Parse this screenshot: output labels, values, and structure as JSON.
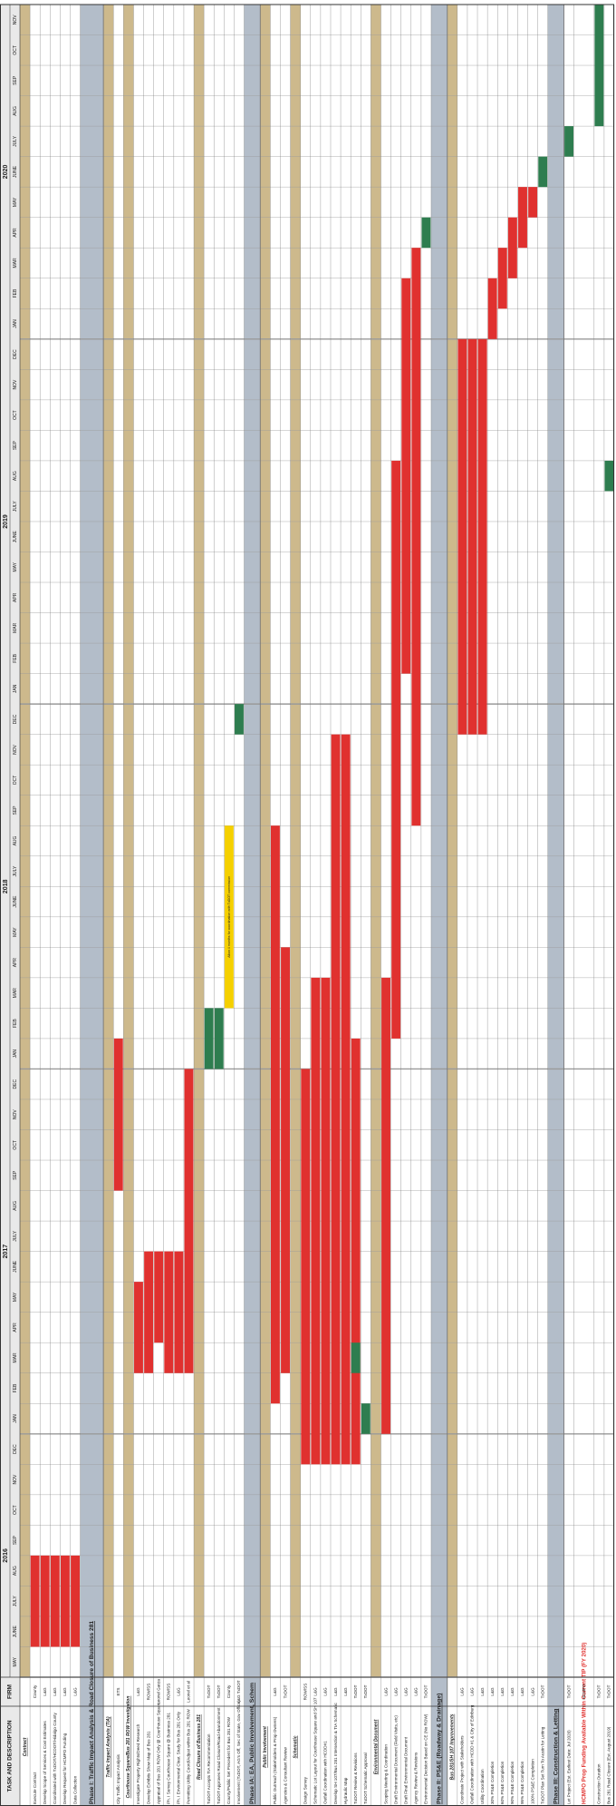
{
  "chart_data": {
    "type": "gantt",
    "headers": {
      "task": "TASK AND DESCRIPTION",
      "firm": "FIRM"
    },
    "years": [
      {
        "label": "2016",
        "months": [
          "MAY",
          "JUNE",
          "JULY",
          "AUG",
          "SEP",
          "OCT",
          "NOV",
          "DEC"
        ]
      },
      {
        "label": "2017",
        "months": [
          "JAN",
          "FEB",
          "MAR",
          "APR",
          "MAY",
          "JUNE",
          "JULY",
          "AUG",
          "SEP",
          "OCT",
          "NOV",
          "DEC"
        ]
      },
      {
        "label": "2018",
        "months": [
          "JAN",
          "FEB",
          "MAR",
          "APR",
          "MAY",
          "JUNE",
          "JULY",
          "AUG",
          "SEP",
          "OCT",
          "NOV",
          "DEC"
        ]
      },
      {
        "label": "2019",
        "months": [
          "JAN",
          "FEB",
          "MAR",
          "APR",
          "MAY",
          "JUNE",
          "JULY",
          "AUG",
          "SEP",
          "OCT",
          "NOV",
          "DEC"
        ]
      },
      {
        "label": "2020",
        "months": [
          "JAN",
          "FEB",
          "MAR",
          "APR",
          "MAY",
          "JUNE",
          "JULY",
          "AUG",
          "SEP",
          "OCT",
          "NOV"
        ]
      }
    ],
    "colors": {
      "section": "#b3bdc9",
      "subsection": "#cdb98c",
      "grid": "#9a9a9a"
    },
    "rows": [
      {
        "kind": "sub",
        "task": "Contract"
      },
      {
        "kind": "task",
        "task": "Execute Contract",
        "firm": "County",
        "bars": [
          {
            "start": "JUNE 2016",
            "end": "AUG 2016",
            "color": "#e0312f"
          }
        ]
      },
      {
        "kind": "task",
        "task": "Develop Scope of Services & Cost Estimates",
        "firm": "L&G",
        "bars": [
          {
            "start": "JUNE 2016",
            "end": "AUG 2016",
            "color": "#e0312f"
          }
        ]
      },
      {
        "kind": "task",
        "task": "Coordinated with TxDOT/HCDOT/Hidalgo County",
        "firm": "L&G",
        "bars": [
          {
            "start": "JUNE 2016",
            "end": "AUG 2016",
            "color": "#e0312f"
          }
        ]
      },
      {
        "kind": "task",
        "task": "Develop Request for HCMPO Funding",
        "firm": "L&G",
        "bars": [
          {
            "start": "JUNE 2016",
            "end": "AUG 2016",
            "color": "#e0312f"
          }
        ]
      },
      {
        "kind": "task",
        "task": "Data Collection",
        "firm": "L&G",
        "bars": [
          {
            "start": "JUNE 2016",
            "end": "AUG 2016",
            "color": "#e0312f"
          }
        ]
      },
      {
        "kind": "section",
        "task": "Phase I: Traffic Impact Analysis & Road Closure of Business 281",
        "tall": true
      },
      {
        "kind": "sub",
        "task": "Traffic Impact Analysis (TIA)"
      },
      {
        "kind": "task",
        "task": "City Traffic Impact Analysis",
        "firm": "ETS",
        "bars": [
          {
            "start": "SEP 2017",
            "end": "JAN 2018",
            "color": "#e0312f"
          }
        ]
      },
      {
        "kind": "sub",
        "task": "Courthouse Square/Bus 281 ROW Investigation"
      },
      {
        "kind": "task",
        "task": "Investigate Property Rights/Deed Research",
        "firm": "L&G",
        "bars": [
          {
            "start": "MAR 2017",
            "end": "MAY 2017",
            "color": "#e0312f"
          }
        ]
      },
      {
        "kind": "task",
        "task": "Develop Exhibits Show Map of Bus 281",
        "firm": "ROW/SS",
        "bars": [
          {
            "start": "MAR 2017",
            "end": "JUNE 2017",
            "color": "#e0312f"
          }
        ]
      },
      {
        "kind": "task",
        "task": "Appraisal of Bus 281 ROW Only @ Courthouse Square",
        "firm": "Leonel Garza",
        "bars": [
          {
            "start": "APR 2017",
            "end": "JUNE 2017",
            "color": "#e0312f"
          }
        ]
      },
      {
        "kind": "task",
        "task": "Ph. I Survey Courthouse Square @ Business 281",
        "firm": "ROW/SS",
        "bars": [
          {
            "start": "MAR 2017",
            "end": "JUNE 2017",
            "color": "#e0312f"
          }
        ]
      },
      {
        "kind": "task",
        "task": "Ph. I Environmental Clear. Study for Bus 281 Only",
        "firm": "L&G",
        "bars": [
          {
            "start": "MAR 2017",
            "end": "JUNE 2017",
            "color": "#e0312f"
          }
        ]
      },
      {
        "kind": "task",
        "task": "Permitting Utility Coord/Adjust within Bus 281 ROW",
        "firm": "Leonel et al",
        "bars": [
          {
            "start": "MAR 2017",
            "end": "DEC 2017",
            "color": "#e0312f"
          }
        ]
      },
      {
        "kind": "sub",
        "task": "Road Closure of Business 281"
      },
      {
        "kind": "task",
        "task": "TxDOT Accepts TIA Recommendation",
        "firm": "TxDOT",
        "bars": [
          {
            "start": "JAN 2018",
            "end": "FEB 2018",
            "color": "#2e7d4f"
          }
        ]
      },
      {
        "kind": "task",
        "task": "TxDOT Approves Road Closure/Road Abandonment",
        "firm": "TxDOT",
        "bars": [
          {
            "start": "JAN 2018",
            "end": "FEB 2018",
            "color": "#2e7d4f"
          }
        ]
      },
      {
        "kind": "task",
        "task": "County/Public Set Precedent for Bus 281 ROW",
        "firm": "County",
        "bars": [
          {
            "start": "MAR 2018",
            "end": "AUG 2018",
            "color": "#f5d000",
            "label": "Allow 4 months for coordination with TxDOT commission"
          }
        ]
      },
      {
        "kind": "task",
        "task": "Involvement (TxDOT, AG's Off, Sec of State, Gov Office)",
        "firm": "L&G TxDOT",
        "bars": [
          {
            "start": "DEC 2018",
            "end": "DEC 2018",
            "color": "#2e7d4f"
          }
        ]
      },
      {
        "kind": "section",
        "task": "Phase IA: EA, Public Involvement, Schem"
      },
      {
        "kind": "sub",
        "task": "Public Involvement"
      },
      {
        "kind": "task",
        "task": "Public Outreach (Stakeholders & Prop Owners)",
        "firm": "L&G",
        "bars": [
          {
            "start": "FEB 2017",
            "end": "AUG 2018",
            "color": "#e0312f"
          }
        ]
      },
      {
        "kind": "task",
        "task": "Agencies & Consultant Review",
        "firm": "TxDOT",
        "bars": [
          {
            "start": "MAR 2017",
            "end": "APR 2018",
            "color": "#e0312f"
          }
        ]
      },
      {
        "kind": "sub",
        "task": "Schematic"
      },
      {
        "kind": "task",
        "task": "Design Survey",
        "firm": "ROW/SS",
        "bars": [
          {
            "start": "DEC 2016",
            "end": "DEC 2017",
            "color": "#e0312f"
          }
        ]
      },
      {
        "kind": "task",
        "task": "Schematic Lot Layout for Courthouse Square and SH 107",
        "firm": "L&G",
        "bars": [
          {
            "start": "DEC 2016",
            "end": "MAR 2018",
            "color": "#e0312f"
          }
        ]
      },
      {
        "kind": "task",
        "task": "Outfall Coordination with HCDD#1",
        "firm": "L&G",
        "bars": [
          {
            "start": "DEC 2016",
            "end": "MAR 2018",
            "color": "#e0312f"
          }
        ]
      },
      {
        "kind": "task",
        "task": "Develop SH 107/Bus 281 Intersection & TIA Schematic",
        "firm": "L&G",
        "bars": [
          {
            "start": "DEC 2016",
            "end": "NOV 2018",
            "color": "#e0312f"
          }
        ]
      },
      {
        "kind": "task",
        "task": "Hydraulic Map",
        "firm": "L&G",
        "bars": [
          {
            "start": "DEC 2016",
            "end": "NOV 2018",
            "color": "#e0312f"
          }
        ]
      },
      {
        "kind": "task",
        "task": "TxDOT Review & Revisions",
        "firm": "TxDOT",
        "bars": [
          {
            "start": "DEC 2016",
            "end": "JAN 2018",
            "color": "#e0312f"
          },
          {
            "start": "MAR 2017",
            "end": "MAR 2017",
            "color": "#2e7d4f"
          }
        ]
      },
      {
        "kind": "task",
        "task": "TxDOT Schematic Approval",
        "firm": "TxDOT",
        "bars": [
          {
            "start": "JAN 2017",
            "end": "JAN 2017",
            "color": "#2e7d4f"
          }
        ]
      },
      {
        "kind": "sub",
        "task": "Environmental Document"
      },
      {
        "kind": "task",
        "task": "Scoping Meeting & Coordination",
        "firm": "L&G",
        "bars": [
          {
            "start": "JAN 2017",
            "end": "MAR 2018",
            "color": "#e0312f"
          }
        ]
      },
      {
        "kind": "task",
        "task": "Draft Environmental Document (Field Visits, etc)",
        "firm": "L&G",
        "bars": [
          {
            "start": "FEB 2018",
            "end": "AUG 2019",
            "color": "#e0312f"
          }
        ]
      },
      {
        "kind": "task",
        "task": "Draft Final Environmental Document",
        "firm": "L&G",
        "bars": [
          {
            "start": "FEB 2019",
            "end": "FEB 2020",
            "color": "#e0312f"
          }
        ]
      },
      {
        "kind": "task",
        "task": "Agency Review & Revisions",
        "firm": "L&G",
        "bars": [
          {
            "start": "SEP 2018",
            "end": "MAR 2020",
            "color": "#e0312f"
          }
        ]
      },
      {
        "kind": "task",
        "task": "Environmental Decision Based on CE (No ROW)",
        "firm": "TxDOT",
        "bars": [
          {
            "start": "APR 2020",
            "end": "APR 2020",
            "color": "#2e7d4f"
          }
        ]
      },
      {
        "kind": "section",
        "task": "Phase II: PS&E (Roadway & Drainage)"
      },
      {
        "kind": "sub",
        "task": "Bus 281/SH 107 Improvements"
      },
      {
        "kind": "task",
        "task": "Coordinate Project with Stakeholders",
        "firm": "L&G",
        "bars": [
          {
            "start": "DEC 2018",
            "end": "DEC 2019",
            "color": "#e0312f"
          }
        ]
      },
      {
        "kind": "task",
        "task": "Outfall Coordination with HCDD #1 & City of Edinburg",
        "firm": "L&G",
        "bars": [
          {
            "start": "DEC 2018",
            "end": "DEC 2019",
            "color": "#e0312f"
          }
        ]
      },
      {
        "kind": "task",
        "task": "Utility Coordination",
        "firm": "L&G",
        "bars": [
          {
            "start": "DEC 2018",
            "end": "DEC 2019",
            "color": "#e0312f"
          }
        ]
      },
      {
        "kind": "task",
        "task": "30% PS&E Completion",
        "firm": "L&G",
        "bars": [
          {
            "start": "JAN 2020",
            "end": "FEB 2020",
            "color": "#e0312f"
          }
        ]
      },
      {
        "kind": "task",
        "task": "60% PS&E Completion",
        "firm": "L&G",
        "bars": [
          {
            "start": "FEB 2020",
            "end": "MAR 2020",
            "color": "#e0312f"
          }
        ]
      },
      {
        "kind": "task",
        "task": "90% PS&E Completion",
        "firm": "L&G",
        "bars": [
          {
            "start": "MAR 2020",
            "end": "APR 2020",
            "color": "#e0312f"
          }
        ]
      },
      {
        "kind": "task",
        "task": "95% PS&E Completion",
        "firm": "L&G",
        "bars": [
          {
            "start": "APR 2020",
            "end": "MAY 2020",
            "color": "#e0312f"
          }
        ]
      },
      {
        "kind": "task",
        "task": "100% PS&E Completion",
        "firm": "L&G",
        "bars": [
          {
            "start": "MAY 2020",
            "end": "MAY 2020",
            "color": "#e0312f"
          }
        ]
      },
      {
        "kind": "task",
        "task": "TxDOT Plan Set Turn To Austin for Letting",
        "firm": "TxDOT",
        "bars": [
          {
            "start": "JUNE 2020",
            "end": "JUNE 2020",
            "color": "#2e7d4f"
          }
        ]
      },
      {
        "kind": "section",
        "task": "Phase III: Construction & Letting"
      },
      {
        "kind": "task",
        "task": "Let Project (Est. Earliest Date: Jul 2020)",
        "firm": "TxDOT",
        "bars": [
          {
            "start": "JULY 2020",
            "end": "JULY 2020",
            "color": "#2e7d4f"
          }
        ]
      },
      {
        "kind": "task",
        "task": "HCMPO Prop Funding Available Within Current TIP (FY 2020)",
        "firm": "HCMPO",
        "text_color": "#e0312f",
        "tall": true,
        "bars": []
      },
      {
        "kind": "task",
        "task": "Construction Duration",
        "firm": "TxDOT",
        "bars": [
          {
            "start": "AUG 2020",
            "end": "NOV 2020",
            "color": "#2e7d4f"
          }
        ]
      },
      {
        "kind": "task",
        "task": "Bus 281 Road Closure (Est. August 2019)",
        "firm": "TxDOT",
        "bars": [
          {
            "start": "AUG 2019",
            "end": "AUG 2019",
            "color": "#2e7d4f"
          }
        ]
      }
    ]
  }
}
